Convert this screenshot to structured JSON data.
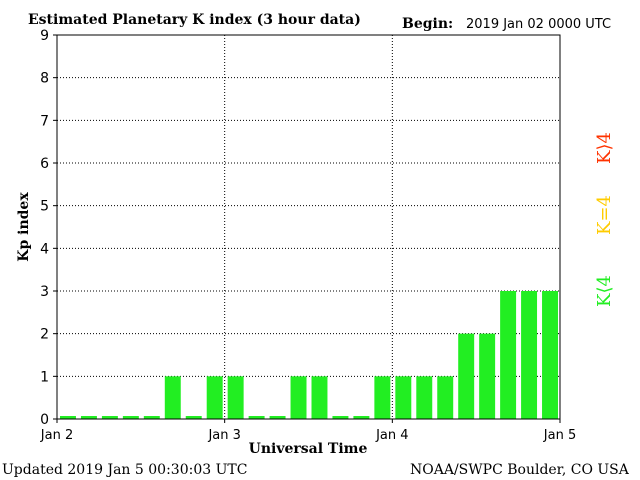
{
  "header": {
    "title": "Estimated Planetary K index (3 hour data)",
    "begin_label": "Begin:",
    "begin_value": "2019 Jan 02 0000 UTC"
  },
  "footer": {
    "updated": "Updated 2019 Jan  5 00:30:03 UTC",
    "source": "NOAA/SWPC Boulder, CO USA"
  },
  "legend": [
    {
      "text": "K⟩4",
      "color": "#ff3300"
    },
    {
      "text": "K=4",
      "color": "#ffcc00"
    },
    {
      "text": "K⟨4",
      "color": "#22ee22"
    }
  ],
  "colors": {
    "below4": "#22ee22",
    "equal4": "#ffcc00",
    "above4": "#ff3300"
  },
  "chart_data": {
    "type": "bar",
    "title": "Estimated Planetary K index (3 hour data)",
    "xlabel": "Universal Time",
    "ylabel": "Kp index",
    "ylim": [
      0,
      9
    ],
    "yticks": [
      0,
      1,
      2,
      3,
      4,
      5,
      6,
      7,
      8,
      9
    ],
    "xticks": [
      "Jan 2",
      "Jan 3",
      "Jan 4",
      "Jan 5"
    ],
    "grid": true,
    "values": [
      0,
      0,
      0,
      0,
      0,
      1,
      0,
      1,
      1,
      0,
      0,
      1,
      1,
      0,
      0,
      1,
      1,
      1,
      1,
      2,
      2,
      3,
      3,
      3
    ]
  }
}
